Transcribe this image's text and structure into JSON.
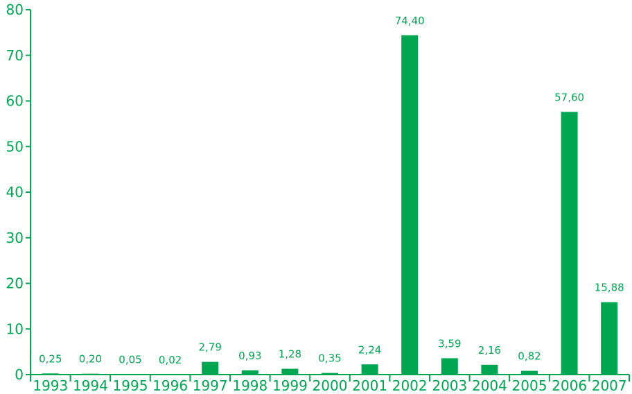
{
  "chart_data": {
    "type": "bar",
    "categories": [
      "1993",
      "1994",
      "1995",
      "1996",
      "1997",
      "1998",
      "1999",
      "2000",
      "2001",
      "2002",
      "2003",
      "2004",
      "2005",
      "2006",
      "2007"
    ],
    "values": [
      0.25,
      0.2,
      0.05,
      0.02,
      2.79,
      0.93,
      1.28,
      0.35,
      2.24,
      74.4,
      3.59,
      2.16,
      0.82,
      57.6,
      15.88
    ],
    "data_labels": [
      "0,25",
      "0,20",
      "0,05",
      "0,02",
      "2,79",
      "0,93",
      "1,28",
      "0,35",
      "2,24",
      "74,40",
      "3,59",
      "2,16",
      "0,82",
      "57,60",
      "15,88"
    ],
    "ylim": [
      0,
      80
    ],
    "yticks": [
      0,
      10,
      20,
      30,
      40,
      50,
      60,
      70,
      80
    ],
    "title": "",
    "xlabel": "",
    "ylabel": "",
    "grid": false,
    "colors": {
      "bar": "#00a651",
      "axis": "#00a651",
      "text": "#00a651"
    }
  }
}
